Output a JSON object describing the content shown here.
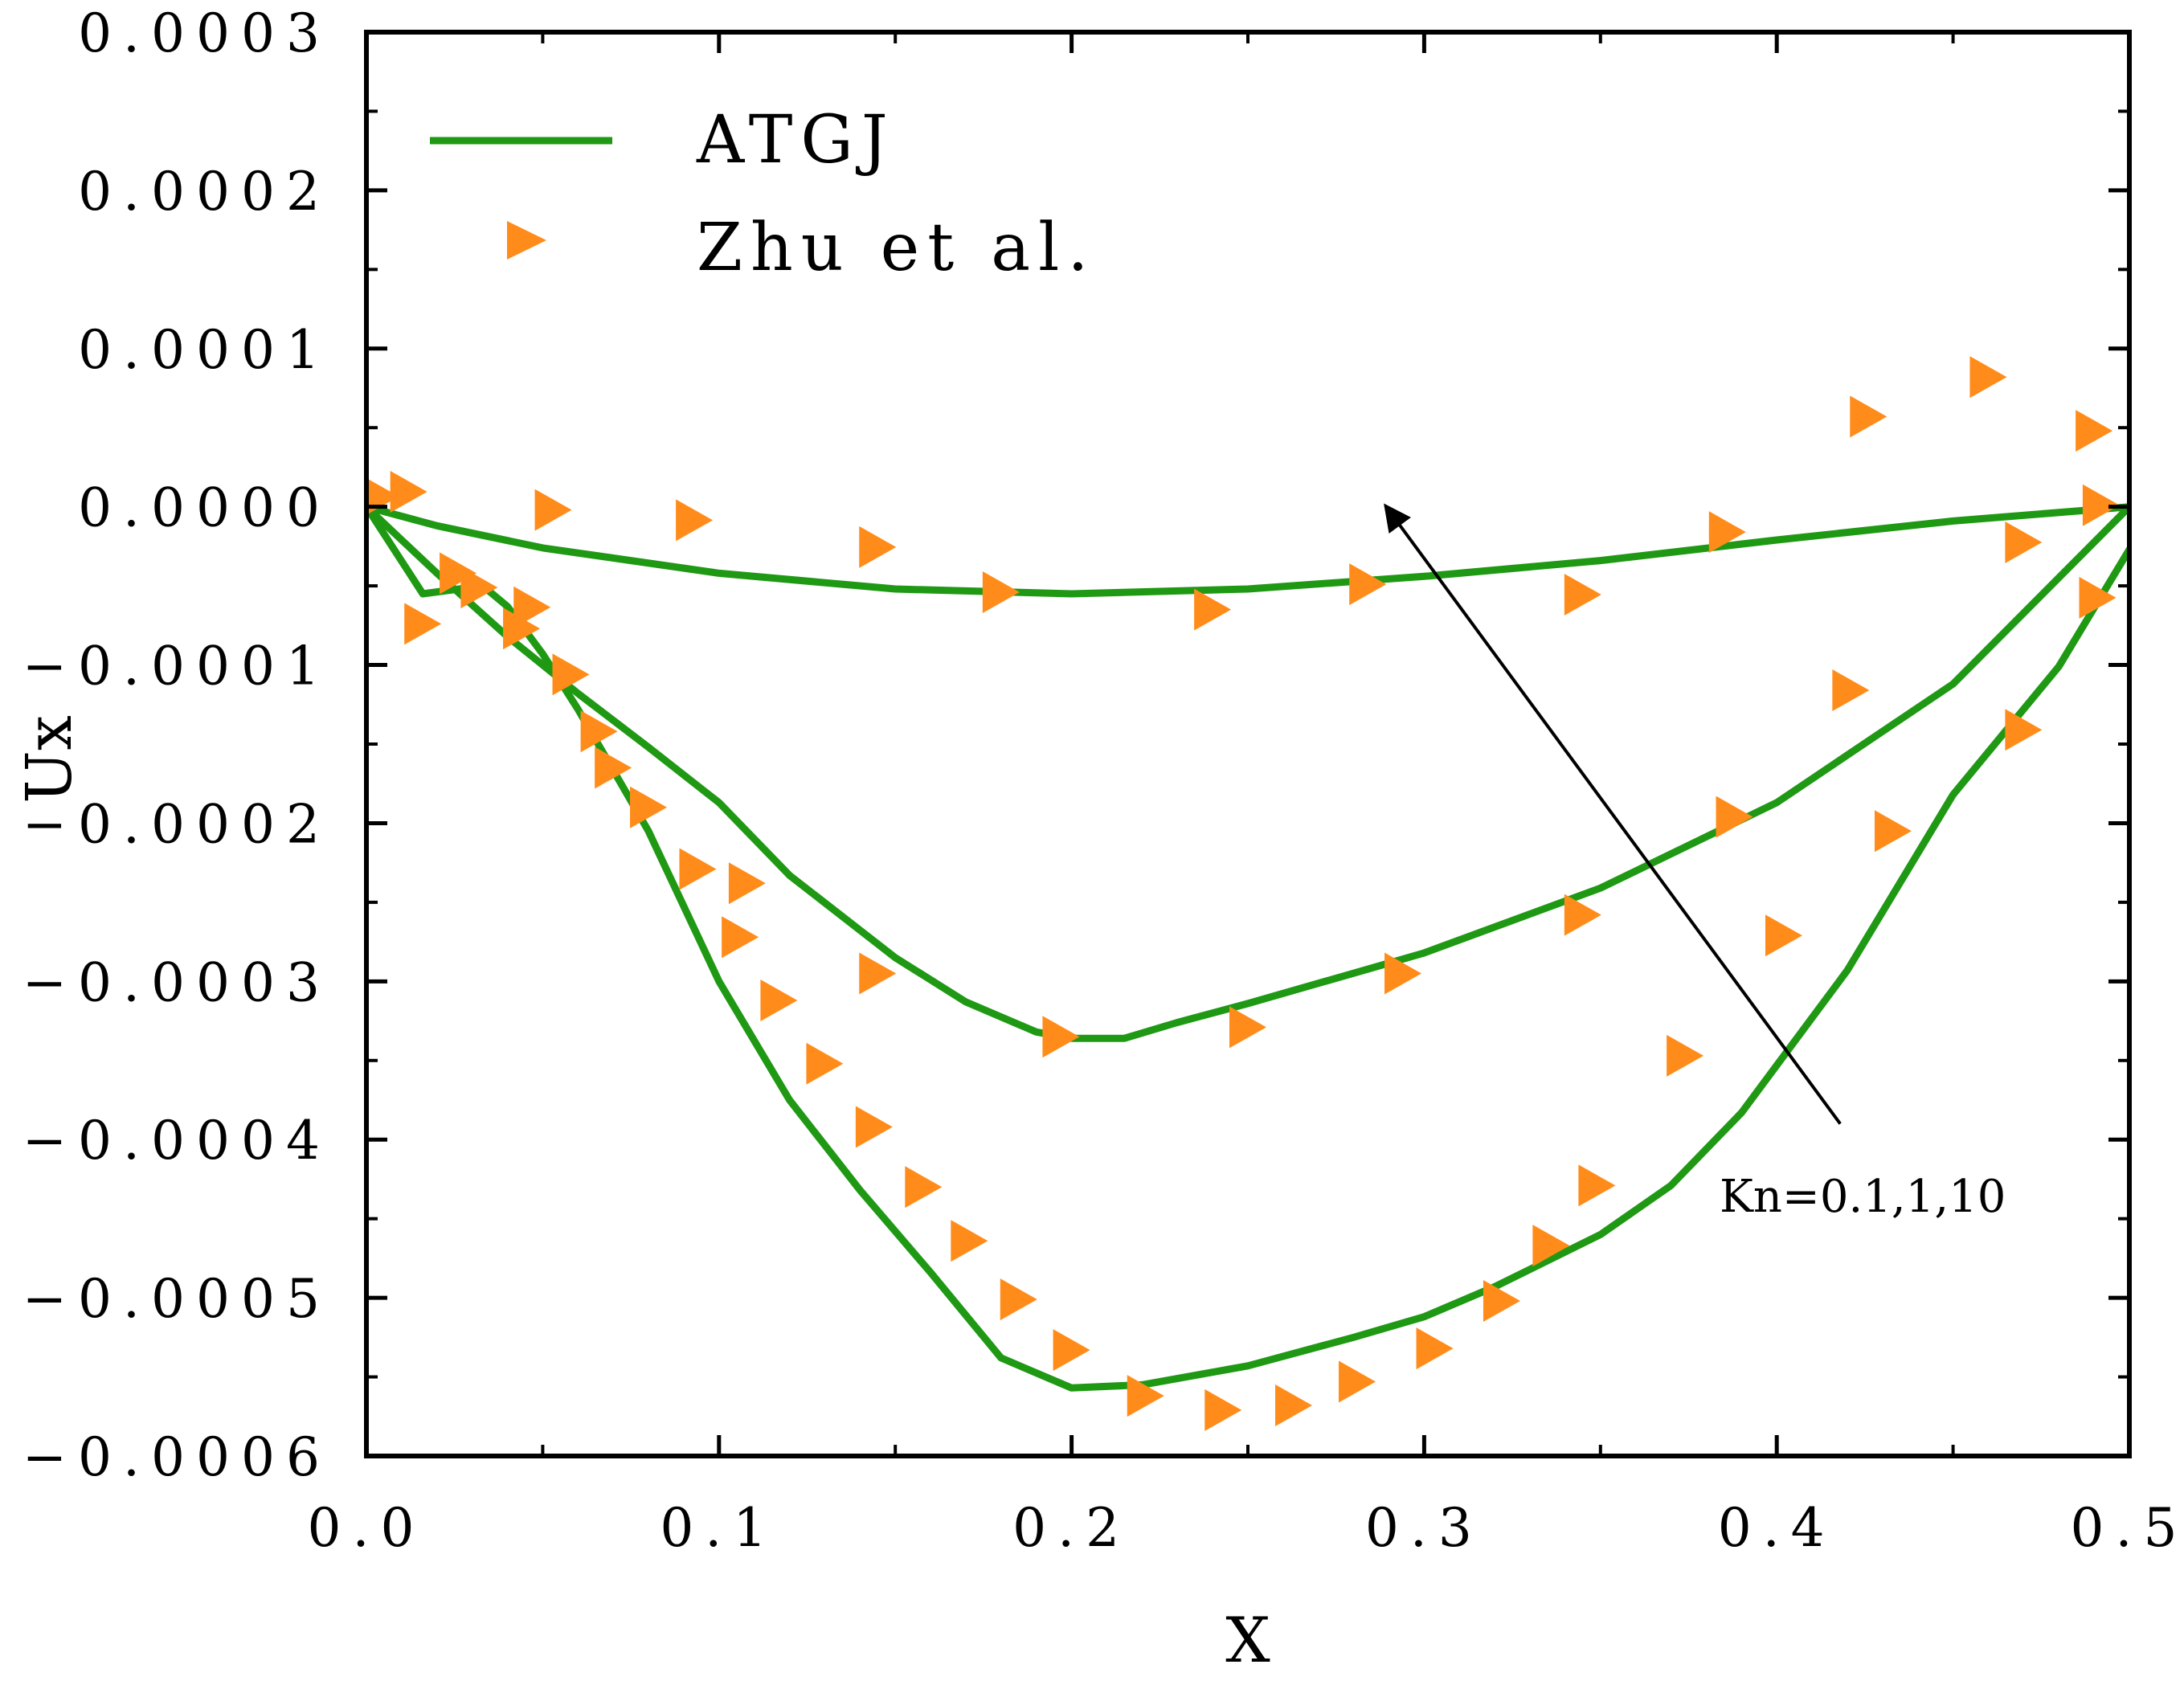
{
  "chart_data": {
    "type": "line",
    "title": "",
    "xlabel": "X",
    "ylabel": "Ux",
    "xlim": [
      0,
      0.5
    ],
    "ylim": [
      -0.0006,
      0.0003
    ],
    "x_ticks": [
      {
        "value": 0.0,
        "label": "0.0"
      },
      {
        "value": 0.1,
        "label": "0.1"
      },
      {
        "value": 0.2,
        "label": "0.2"
      },
      {
        "value": 0.3,
        "label": "0.3"
      },
      {
        "value": 0.4,
        "label": "0.4"
      },
      {
        "value": 0.5,
        "label": "0.5"
      }
    ],
    "y_ticks": [
      {
        "value": 0.0003,
        "label": "0.0003"
      },
      {
        "value": 0.0002,
        "label": "0.0002"
      },
      {
        "value": 0.0001,
        "label": "0.0001"
      },
      {
        "value": 0.0,
        "label": "0.0000"
      },
      {
        "value": -0.0001,
        "label": "−0.0001"
      },
      {
        "value": -0.0002,
        "label": "−0.0002"
      },
      {
        "value": -0.0003,
        "label": "−0.0003"
      },
      {
        "value": -0.0004,
        "label": "−0.0004"
      },
      {
        "value": -0.0005,
        "label": "−0.0005"
      },
      {
        "value": -0.0006,
        "label": "−0.0006"
      }
    ],
    "grid": false,
    "legend": {
      "position": "top-left",
      "entries": [
        {
          "label": "ATGJ",
          "marker": "line",
          "color": "#1f9914"
        },
        {
          "label": "Zhu et al.",
          "marker": "triangle-right",
          "color": "#ff8c1a"
        }
      ]
    },
    "annotation": {
      "text": "Kn=0.1,1,10",
      "arrow_from": [
        0.418,
        -0.00039
      ],
      "arrow_to": [
        0.289,
        7e-07
      ]
    },
    "series": [
      {
        "name": "ATGJ Kn=10",
        "kind": "line",
        "color": "#1f9914",
        "x": [
          0.0,
          0.02,
          0.05,
          0.1,
          0.15,
          0.2,
          0.25,
          0.3,
          0.35,
          0.4,
          0.45,
          0.5
        ],
        "y": [
          0.0,
          -1.2e-05,
          -2.6e-05,
          -4.2e-05,
          -5.2e-05,
          -5.5e-05,
          -5.2e-05,
          -4.4e-05,
          -3.4e-05,
          -2.1e-05,
          -9e-06,
          0.0
        ]
      },
      {
        "name": "ATGJ Kn=1",
        "kind": "line",
        "color": "#1f9914",
        "x": [
          0.0,
          0.02,
          0.04,
          0.06,
          0.08,
          0.1,
          0.12,
          0.15,
          0.17,
          0.19,
          0.2,
          0.215,
          0.23,
          0.25,
          0.3,
          0.35,
          0.4,
          0.45,
          0.5
        ],
        "y": [
          0.0,
          -4.2e-05,
          -8.2e-05,
          -0.000118,
          -0.000152,
          -0.000187,
          -0.000233,
          -0.000285,
          -0.000313,
          -0.000332,
          -0.000336,
          -0.000336,
          -0.000326,
          -0.000314,
          -0.000282,
          -0.000241,
          -0.000187,
          -0.000112,
          0.0
        ]
      },
      {
        "name": "ATGJ Kn=0.1",
        "kind": "line",
        "color": "#1f9914",
        "x": [
          0.0,
          0.016,
          0.033,
          0.04,
          0.05,
          0.06,
          0.08,
          0.1,
          0.12,
          0.14,
          0.16,
          0.18,
          0.2,
          0.22,
          0.25,
          0.28,
          0.3,
          0.32,
          0.35,
          0.37,
          0.39,
          0.42,
          0.45,
          0.48,
          0.5
        ],
        "y": [
          0.0,
          -5.5e-05,
          -5e-05,
          -6.3e-05,
          -9.3e-05,
          -0.000128,
          -0.000205,
          -0.0003,
          -0.000375,
          -0.000432,
          -0.000484,
          -0.000538,
          -0.000557,
          -0.000555,
          -0.000543,
          -0.000525,
          -0.000512,
          -0.000493,
          -0.00046,
          -0.000429,
          -0.000383,
          -0.000293,
          -0.000182,
          -0.000101,
          -2.7e-05
        ]
      },
      {
        "name": "Zhu et al.",
        "kind": "scatter",
        "color": "#ff8c1a",
        "x": [
          0.004,
          0.012,
          0.016,
          0.026,
          0.032,
          0.044,
          0.047,
          0.053,
          0.058,
          0.066,
          0.07,
          0.08,
          0.093,
          0.094,
          0.106,
          0.108,
          0.117,
          0.13,
          0.144,
          0.145,
          0.145,
          0.158,
          0.171,
          0.18,
          0.185,
          0.197,
          0.2,
          0.221,
          0.24,
          0.243,
          0.25,
          0.263,
          0.281,
          0.284,
          0.294,
          0.303,
          0.322,
          0.336,
          0.345,
          0.345,
          0.349,
          0.374,
          0.386,
          0.388,
          0.402,
          0.421,
          0.426,
          0.433,
          0.46,
          0.47,
          0.47,
          0.49,
          0.491,
          0.492
        ],
        "y": [
          6.5e-06,
          9.5e-06,
          -7.4e-05,
          -4.2e-05,
          -5.1e-05,
          -7.7e-05,
          -6.35e-05,
          -2e-06,
          -0.000106,
          -0.000142,
          -0.000165,
          -0.00019,
          -8.5e-06,
          -0.000229,
          -0.000272,
          -0.000238,
          -0.000312,
          -0.000352,
          -0.000392,
          -2.55e-05,
          -0.000295,
          -0.00043,
          -0.000464,
          -5.4e-05,
          -0.000501,
          -0.000335,
          -0.000533,
          -0.000562,
          -6.5e-05,
          -0.000571,
          -0.000329,
          -0.000568,
          -0.000553,
          -4.9e-05,
          -0.000295,
          -0.000532,
          -0.000502,
          -0.000467,
          -5.55e-05,
          -0.000258,
          -0.000429,
          -0.000347,
          -1.6e-05,
          -0.000196,
          -0.000271,
          -0.000116,
          5.7e-05,
          -0.000205,
          8.2e-05,
          -0.000141,
          -2.25e-05,
          4.8e-05,
          -5.75e-05,
          1e-06
        ]
      }
    ]
  }
}
